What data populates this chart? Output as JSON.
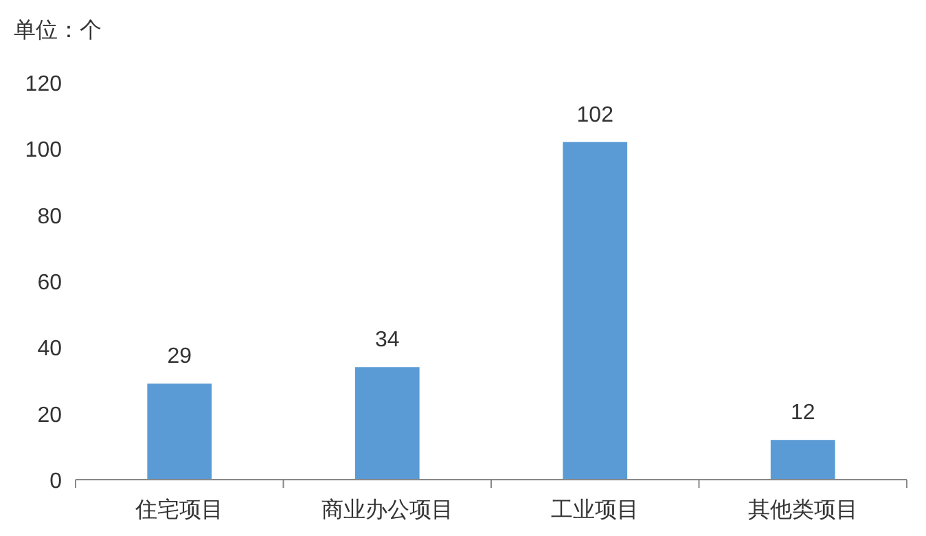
{
  "chart_data": {
    "type": "bar",
    "ylabel": "单位：个",
    "categories": [
      "住宅项目",
      "商业办公项目",
      "工业项目",
      "其他类项目"
    ],
    "values": [
      29,
      34,
      102,
      12
    ],
    "color": "#5b9bd5",
    "ylim": [
      0,
      120
    ],
    "yticks": [
      0,
      20,
      40,
      60,
      80,
      100,
      120
    ],
    "grid": false,
    "data_labels": true
  }
}
